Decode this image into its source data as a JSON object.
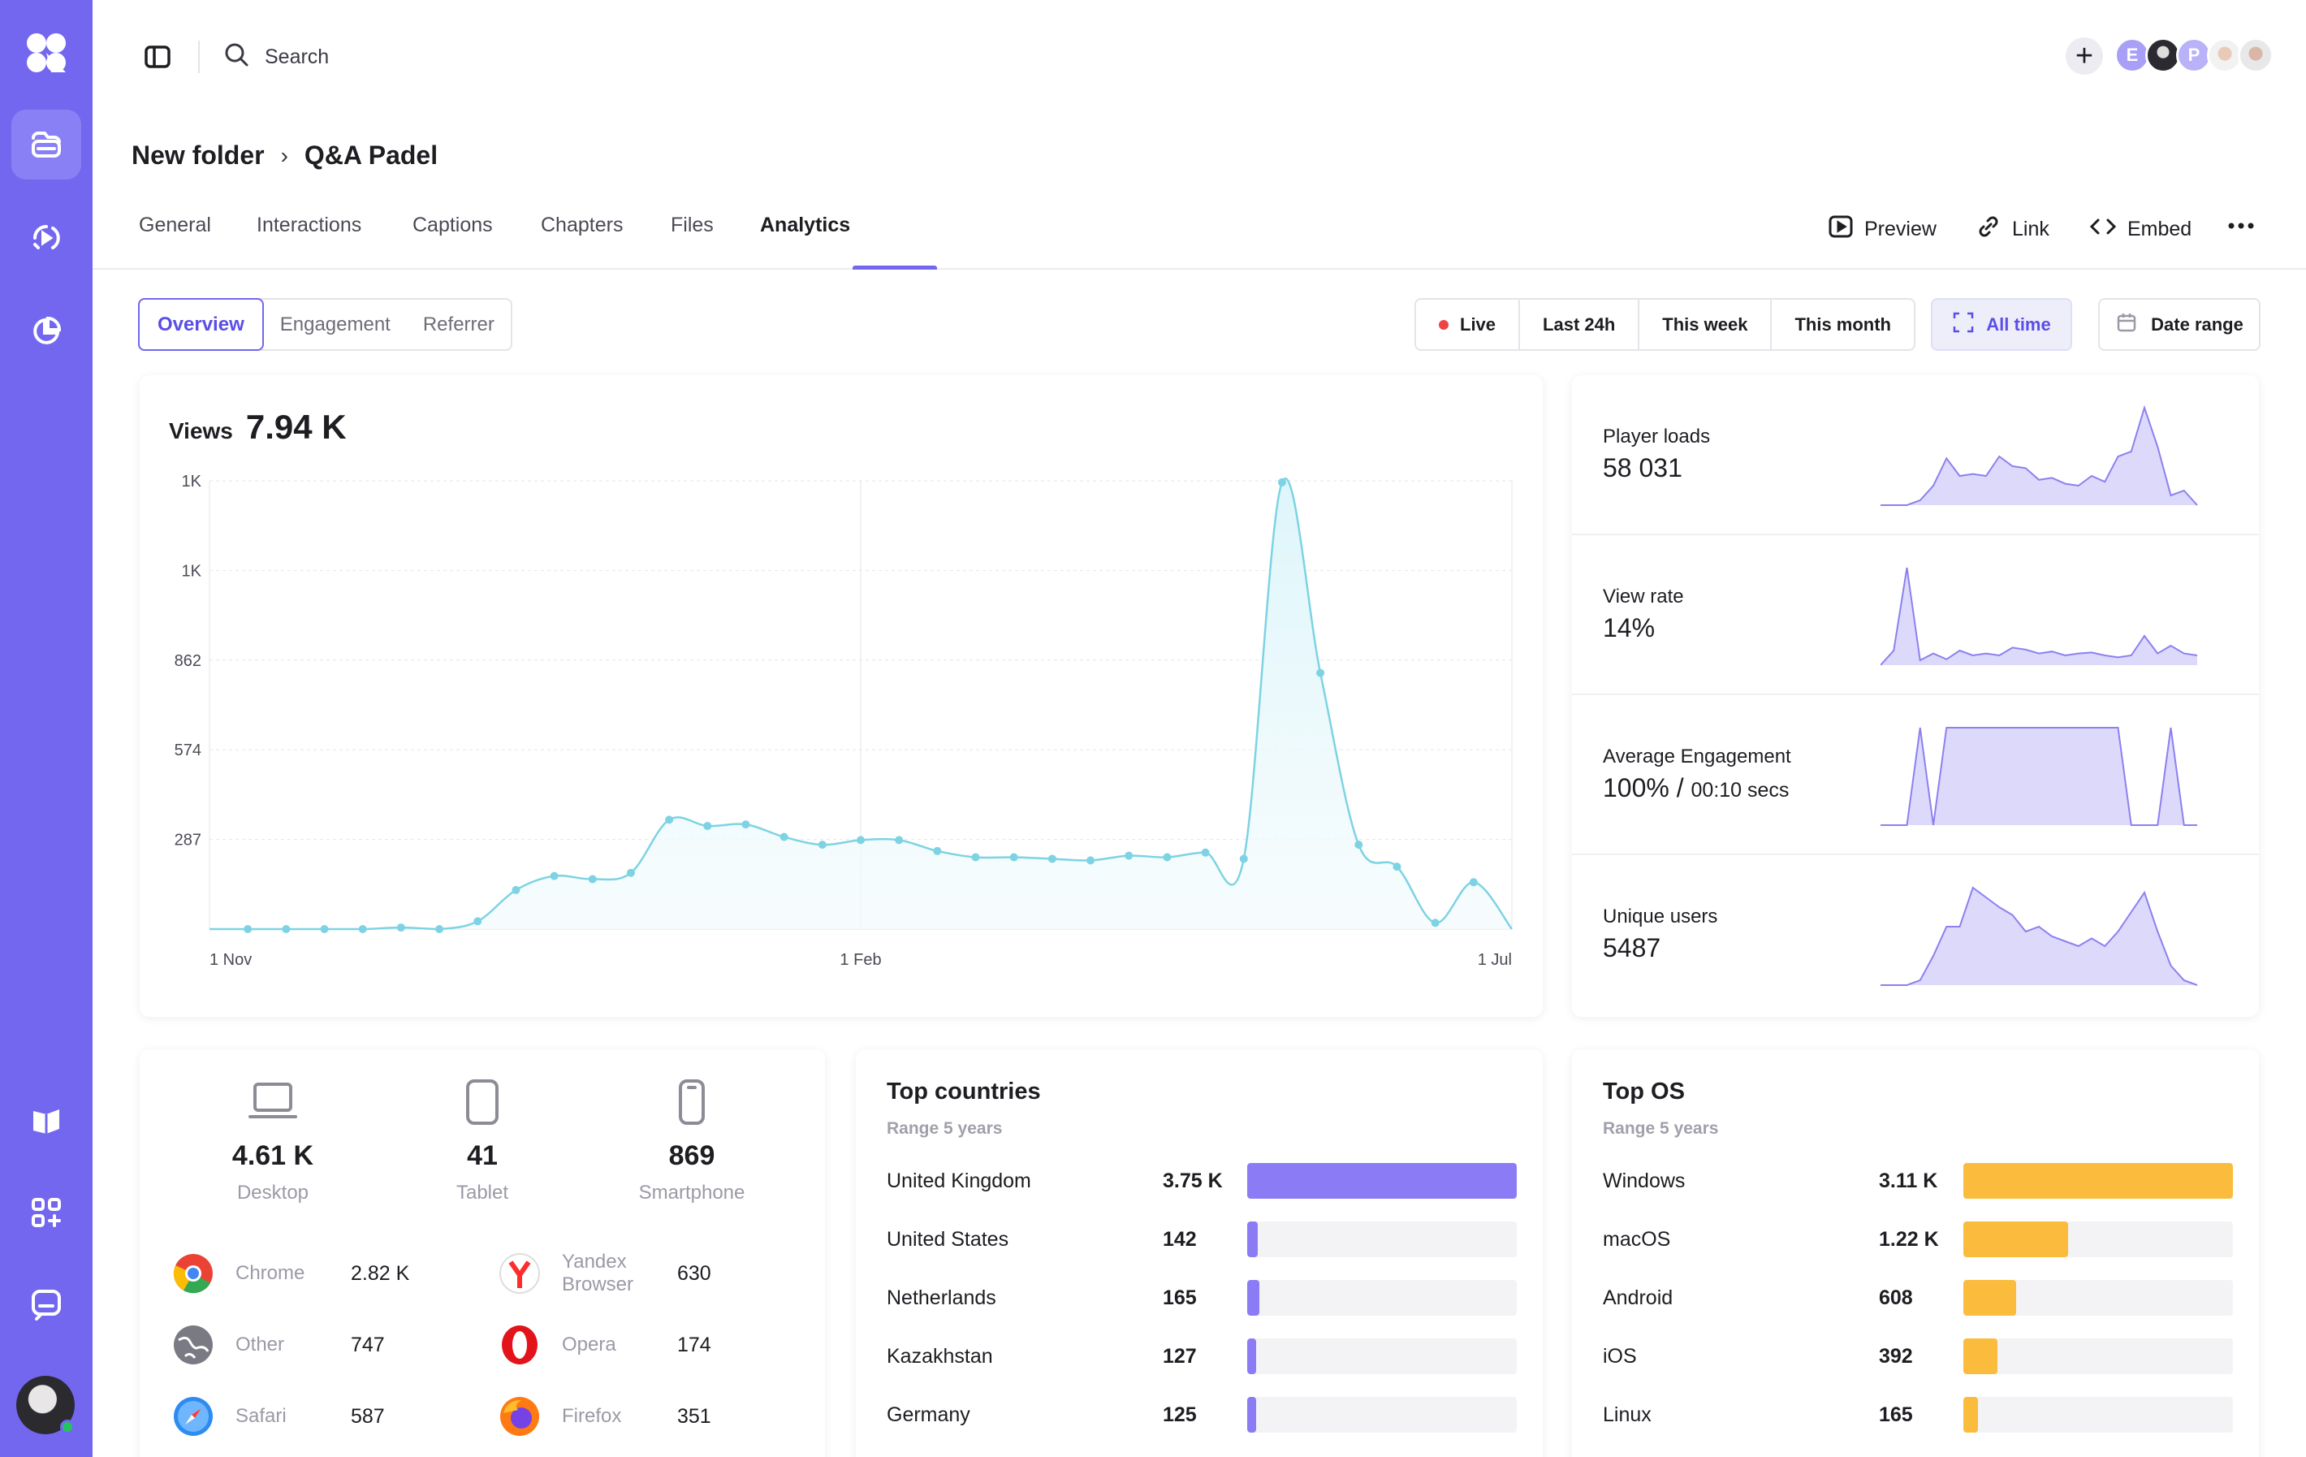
{
  "app": {
    "accent": "#7367f0"
  },
  "sidebar": {
    "items": [
      {
        "icon": "logo-icon"
      },
      {
        "icon": "video-library-icon",
        "active": true
      },
      {
        "icon": "live-stream-icon"
      },
      {
        "icon": "analytics-chart-icon"
      },
      {
        "icon": "academy-book-icon"
      },
      {
        "icon": "integrations-icon"
      },
      {
        "icon": "feedback-chat-icon"
      }
    ]
  },
  "topbar": {
    "search_label": "Search",
    "collaborators": [
      "E",
      "",
      "P",
      "",
      ""
    ]
  },
  "breadcrumb": {
    "parent": "New folder",
    "separator": "›",
    "current": "Q&A Padel"
  },
  "tabs": [
    "General",
    "Interactions",
    "Captions",
    "Chapters",
    "Files",
    "Analytics"
  ],
  "active_tab": "Analytics",
  "actions": {
    "preview": "Preview",
    "link": "Link",
    "embed": "Embed"
  },
  "view_toggle": {
    "items": [
      "Overview",
      "Engagement",
      "Referrer"
    ],
    "active": "Overview"
  },
  "time_ranges": {
    "live": "Live",
    "last24h": "Last 24h",
    "week": "This week",
    "month": "This month",
    "all_time": "All time",
    "date_range": "Date range"
  },
  "views": {
    "label": "Views",
    "value": "7.94 K"
  },
  "chart_data": {
    "type": "area",
    "title": "Views",
    "y_tick_labels": [
      "287",
      "574",
      "862",
      "1K",
      "1K"
    ],
    "x_tick_labels": [
      "1 Nov",
      "1 Feb",
      "1 Jul"
    ],
    "ylim": [
      0,
      1435
    ],
    "grid": true,
    "color": "#7dd3e3",
    "values": [
      0,
      0,
      0,
      0,
      0,
      5,
      0,
      25,
      125,
      170,
      160,
      180,
      350,
      330,
      335,
      295,
      270,
      285,
      285,
      250,
      230,
      230,
      225,
      220,
      235,
      230,
      245,
      225,
      1430,
      820,
      270,
      200,
      20,
      150,
      0
    ],
    "markers": [
      false,
      true,
      true,
      true,
      true,
      true,
      true,
      true,
      true,
      true,
      true,
      true,
      true,
      true,
      true,
      true,
      true,
      true,
      true,
      true,
      true,
      true,
      true,
      true,
      true,
      true,
      true,
      true,
      true,
      true,
      true,
      true,
      true,
      true,
      false
    ]
  },
  "metrics": [
    {
      "label": "Player loads",
      "value": "58 031",
      "spark": [
        0,
        0,
        0,
        0.05,
        0.2,
        0.48,
        0.3,
        0.32,
        0.3,
        0.5,
        0.4,
        0.38,
        0.26,
        0.28,
        0.22,
        0.2,
        0.3,
        0.24,
        0.5,
        0.55,
        1,
        0.6,
        0.1,
        0.15,
        0
      ]
    },
    {
      "label": "View rate",
      "value": "14%",
      "spark": [
        0,
        0.15,
        1,
        0.05,
        0.12,
        0.06,
        0.15,
        0.1,
        0.12,
        0.1,
        0.18,
        0.16,
        0.12,
        0.14,
        0.1,
        0.12,
        0.13,
        0.1,
        0.08,
        0.1,
        0.3,
        0.12,
        0.2,
        0.12,
        0.1
      ]
    },
    {
      "label": "Average Engagement",
      "value": "100%",
      "value_sep": " / ",
      "sub": "00:10 secs",
      "spark": [
        0,
        0,
        0,
        1,
        0,
        1,
        1,
        1,
        1,
        1,
        1,
        1,
        1,
        1,
        1,
        1,
        1,
        1,
        1,
        0,
        0,
        0,
        1,
        0,
        0
      ]
    },
    {
      "label": "Unique users",
      "value": "5487",
      "spark": [
        0,
        0,
        0,
        0.05,
        0.3,
        0.6,
        0.6,
        1,
        0.9,
        0.8,
        0.72,
        0.55,
        0.6,
        0.5,
        0.45,
        0.4,
        0.48,
        0.4,
        0.55,
        0.75,
        0.95,
        0.55,
        0.2,
        0.05,
        0
      ]
    }
  ],
  "devices": [
    {
      "label": "Desktop",
      "value": "4.61 K",
      "icon": "laptop-icon"
    },
    {
      "label": "Tablet",
      "value": "41",
      "icon": "tablet-icon"
    },
    {
      "label": "Smartphone",
      "value": "869",
      "icon": "smartphone-icon"
    }
  ],
  "browsers": [
    {
      "name": "Chrome",
      "value": "2.82 K",
      "icon": "chrome-icon",
      "color": "#34a853"
    },
    {
      "name": "Yandex Browser",
      "value": "630",
      "icon": "yandex-icon",
      "color": "#ff2c2c"
    },
    {
      "name": "Other",
      "value": "747",
      "icon": "globe-icon",
      "color": "#7a7a84"
    },
    {
      "name": "Opera",
      "value": "174",
      "icon": "opera-icon",
      "color": "#e3131b"
    },
    {
      "name": "Safari",
      "value": "587",
      "icon": "safari-icon",
      "color": "#2e8cf0"
    },
    {
      "name": "Firefox",
      "value": "351",
      "icon": "firefox-icon",
      "color": "#ff7a12"
    }
  ],
  "top_countries": {
    "title": "Top countries",
    "subtitle": "Range 5 years",
    "color": "#8b7cf6",
    "rows": [
      {
        "name": "United Kingdom",
        "value": "3.75 K",
        "share": 1.0
      },
      {
        "name": "United States",
        "value": "142",
        "share": 0.038
      },
      {
        "name": "Netherlands",
        "value": "165",
        "share": 0.044
      },
      {
        "name": "Kazakhstan",
        "value": "127",
        "share": 0.034
      },
      {
        "name": "Germany",
        "value": "125",
        "share": 0.033
      }
    ]
  },
  "top_os": {
    "title": "Top OS",
    "subtitle": "Range 5 years",
    "color": "#fbbc3d",
    "rows": [
      {
        "name": "Windows",
        "value": "3.11 K",
        "share": 1.0
      },
      {
        "name": "macOS",
        "value": "1.22 K",
        "share": 0.39
      },
      {
        "name": "Android",
        "value": "608",
        "share": 0.195
      },
      {
        "name": "iOS",
        "value": "392",
        "share": 0.126
      },
      {
        "name": "Linux",
        "value": "165",
        "share": 0.053
      }
    ]
  }
}
